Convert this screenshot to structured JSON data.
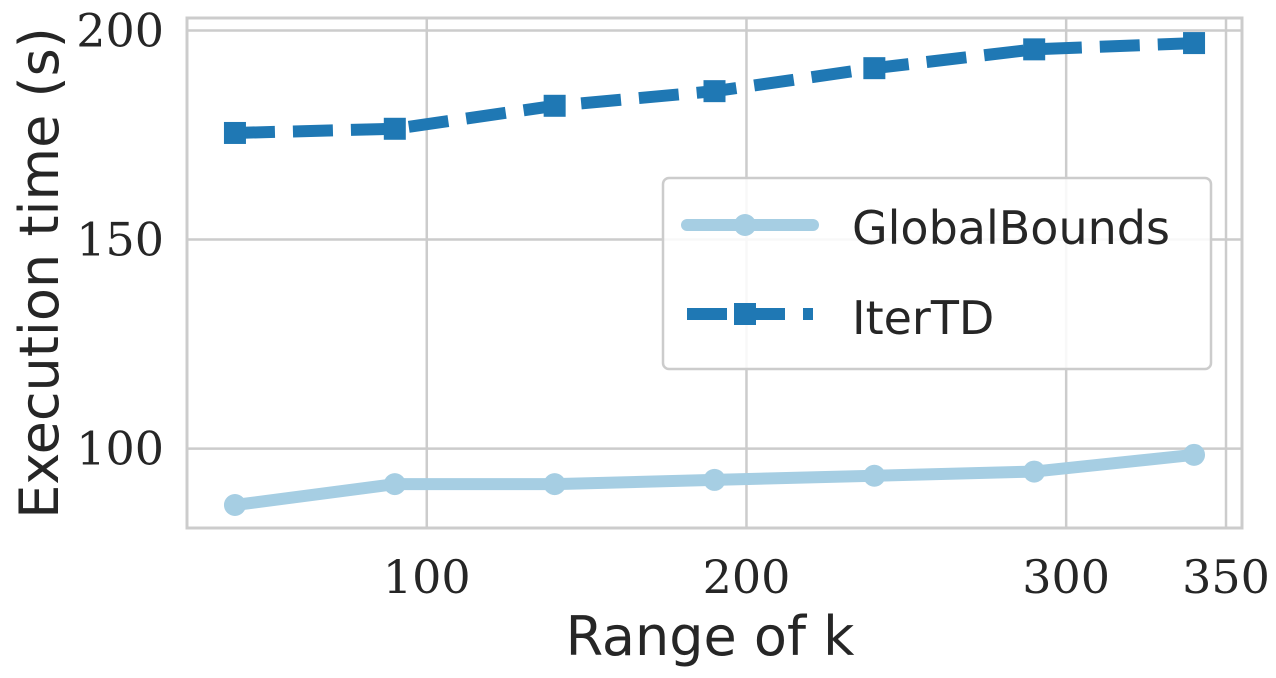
{
  "chart_data": {
    "type": "line",
    "xlabel": "Range of k",
    "ylabel": "Execution time (s)",
    "xlim": [
      25,
      355
    ],
    "ylim": [
      81,
      203
    ],
    "xticks": [
      100,
      200,
      300,
      350
    ],
    "yticks": [
      100,
      150,
      200
    ],
    "grid": true,
    "legend_position": "center-right",
    "series": [
      {
        "name": "GlobalBounds",
        "color": "#a6cee3",
        "line_style": "solid",
        "marker": "circle",
        "x": [
          40,
          90,
          140,
          190,
          240,
          290,
          340
        ],
        "y": [
          86.5,
          91.5,
          91.5,
          92.5,
          93.5,
          94.5,
          98.5
        ]
      },
      {
        "name": "IterTD",
        "color": "#1f78b4",
        "line_style": "dashed",
        "marker": "square",
        "x": [
          40,
          90,
          140,
          190,
          240,
          290,
          340
        ],
        "y": [
          175.5,
          176.5,
          182,
          185.5,
          191,
          195.5,
          197
        ]
      }
    ]
  }
}
